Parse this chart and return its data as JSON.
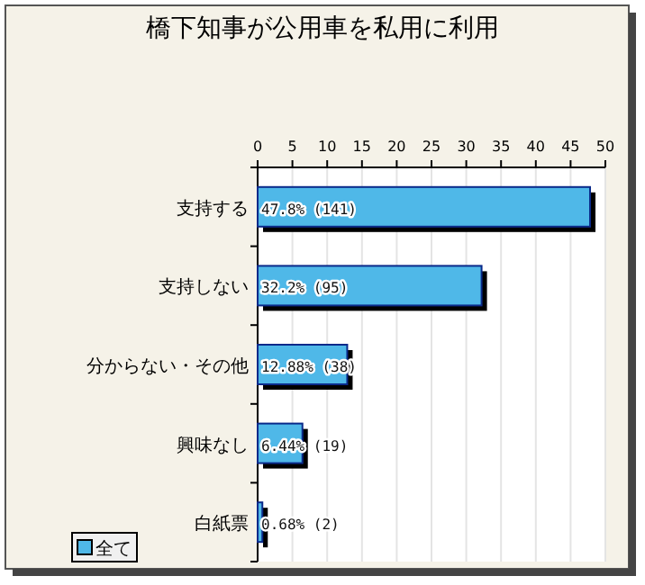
{
  "chart_data": {
    "type": "bar",
    "orientation": "horizontal",
    "title": "橋下知事が公用車を私用に利用",
    "categories": [
      "支持する",
      "支持しない",
      "分からない・その他",
      "興味なし",
      "白紙票"
    ],
    "series": [
      {
        "name": "全て",
        "color": "#4fb8e8",
        "values": [
          47.8,
          32.2,
          12.88,
          6.44,
          0.68
        ],
        "value_labels": [
          "47.8% (141)",
          "32.2% (95)",
          "12.88% (38)",
          "6.44% (19)",
          "0.68% (2)"
        ]
      }
    ],
    "xlim": [
      0,
      50
    ],
    "xticks": [
      0,
      5,
      10,
      15,
      20,
      25,
      30,
      35,
      40,
      45,
      50
    ],
    "grid": "x",
    "legend": "bottom left"
  }
}
